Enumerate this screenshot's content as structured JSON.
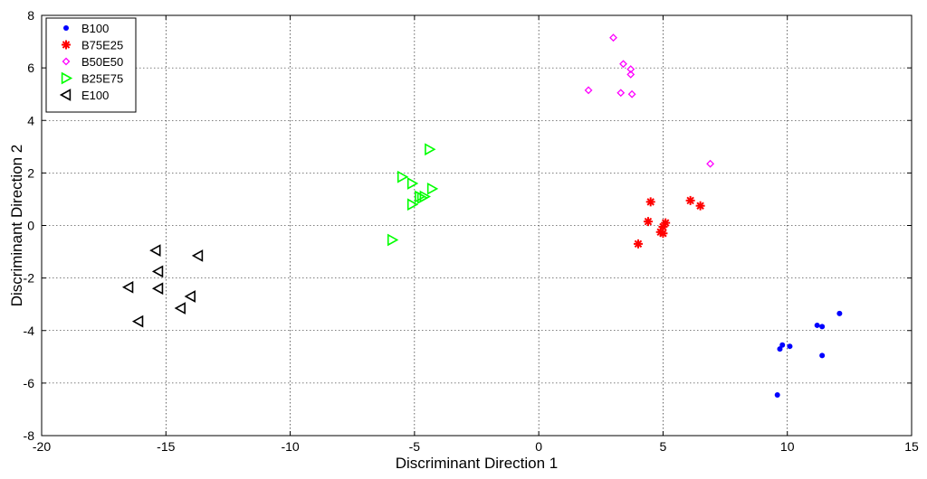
{
  "chart_data": {
    "type": "scatter",
    "title": "",
    "xlabel": "Discriminant Direction 1",
    "ylabel": "Discriminant Direction 2",
    "xlim": [
      -20,
      15
    ],
    "ylim": [
      -8,
      8
    ],
    "xticks": [
      -20,
      -15,
      -10,
      -5,
      0,
      5,
      10,
      15
    ],
    "yticks": [
      -8,
      -6,
      -4,
      -2,
      0,
      2,
      4,
      6,
      8
    ],
    "grid": true,
    "legend_position": "top-left",
    "series": [
      {
        "name": "B100",
        "marker": "dot",
        "color": "#0000ff",
        "points": [
          [
            12.1,
            -3.35
          ],
          [
            11.2,
            -3.8
          ],
          [
            11.4,
            -3.85
          ],
          [
            9.8,
            -4.55
          ],
          [
            9.7,
            -4.7
          ],
          [
            10.1,
            -4.6
          ],
          [
            11.4,
            -4.95
          ],
          [
            9.6,
            -6.45
          ]
        ]
      },
      {
        "name": "B75E25",
        "marker": "asterisk",
        "color": "#ff0000",
        "points": [
          [
            4.5,
            0.9
          ],
          [
            6.1,
            0.95
          ],
          [
            6.5,
            0.75
          ],
          [
            4.4,
            0.15
          ],
          [
            5.1,
            0.1
          ],
          [
            5.0,
            -0.05
          ],
          [
            4.9,
            -0.25
          ],
          [
            5.0,
            -0.3
          ],
          [
            4.0,
            -0.7
          ]
        ]
      },
      {
        "name": "B50E50",
        "marker": "diamond",
        "color": "#ff00ff",
        "points": [
          [
            3.0,
            7.15
          ],
          [
            3.4,
            6.15
          ],
          [
            3.7,
            5.95
          ],
          [
            3.7,
            5.75
          ],
          [
            2.0,
            5.15
          ],
          [
            3.3,
            5.05
          ],
          [
            3.75,
            5.0
          ],
          [
            6.9,
            2.35
          ]
        ]
      },
      {
        "name": "B25E75",
        "marker": "triangle-right",
        "color": "#00ff00",
        "points": [
          [
            -4.4,
            2.9
          ],
          [
            -5.5,
            1.85
          ],
          [
            -5.1,
            1.6
          ],
          [
            -4.3,
            1.4
          ],
          [
            -4.8,
            1.1
          ],
          [
            -4.6,
            1.1
          ],
          [
            -4.7,
            1.05
          ],
          [
            -5.1,
            0.8
          ],
          [
            -5.9,
            -0.55
          ]
        ]
      },
      {
        "name": "E100",
        "marker": "triangle-left",
        "color": "#000000",
        "points": [
          [
            -15.4,
            -0.95
          ],
          [
            -13.7,
            -1.15
          ],
          [
            -15.3,
            -1.75
          ],
          [
            -16.5,
            -2.35
          ],
          [
            -15.3,
            -2.4
          ],
          [
            -14.0,
            -2.7
          ],
          [
            -14.4,
            -3.15
          ],
          [
            -16.1,
            -3.65
          ]
        ]
      }
    ]
  }
}
